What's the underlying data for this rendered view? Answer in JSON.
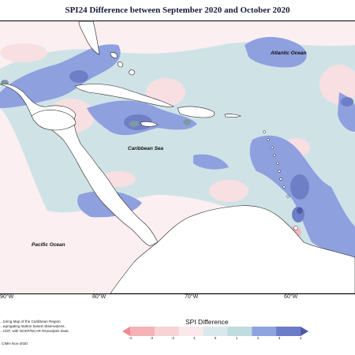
{
  "title": "SPI24 Difference between September 2020 and October 2020",
  "ocean_labels": {
    "atlantic": "Atlantic Ocean",
    "caribbean": "Caribbean Sea",
    "pacific": "Pacific Ocean"
  },
  "longitude_labels": [
    "90°W",
    "80°W",
    "70°W",
    "60°W"
  ],
  "notes": {
    "line1": "...toring Map of the Caribbean Region.",
    "line2": "...egrogating station based observations,",
    "line3": "...CDF, with NCEP/NCAR Reanalysis Data",
    "credit": "CIMH Nov-2020"
  },
  "legend": {
    "title": "SPI Difference",
    "ticks": [
      "-4",
      "-3",
      "-2",
      "-1",
      "0",
      "1",
      "2",
      "3",
      "4"
    ],
    "colors": [
      "#f08a8f",
      "#f4b3b6",
      "#f8d3d5",
      "#fbe8ea",
      "#d9e8ec",
      "#c0dce0",
      "#8da4e0",
      "#6d7cc8",
      "#4f5aa8"
    ]
  },
  "map_colors": {
    "land": "#ffffff",
    "slight_negative": "#fbeff1",
    "light_positive": "#cfe3e7",
    "medium_positive": "#8fa0df",
    "strong_positive": "#6f7fc6",
    "teal_core": "#7d99a5",
    "negative_core": "#f3b8bc"
  }
}
